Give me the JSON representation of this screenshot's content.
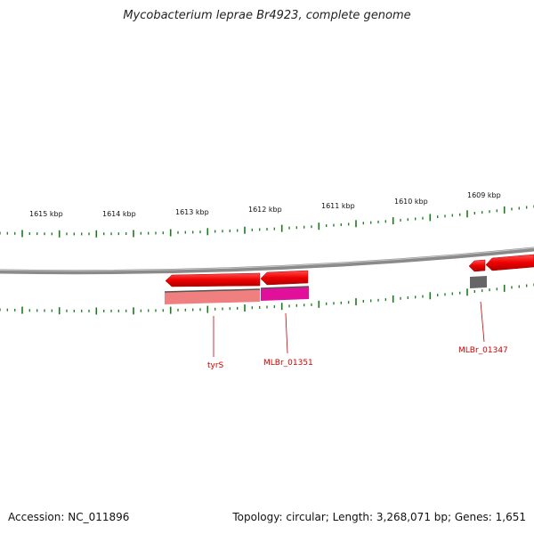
{
  "title": "Mycobacterium leprae Br4923, complete genome",
  "footer": {
    "accession": "Accession: NC_011896",
    "summary": "Topology: circular; Length: 3,268,071 bp; Genes: 1,651"
  },
  "ruler": {
    "labels": [
      "1615 kbp",
      "1614 kbp",
      "1613 kbp",
      "1612 kbp",
      "1611 kbp",
      "1610 kbp",
      "1609 kbp"
    ]
  },
  "genes": [
    {
      "name": "tyrS",
      "labeled": true,
      "color": "#ee0000",
      "strand": "minus"
    },
    {
      "name": "MLBr_01351",
      "labeled": true,
      "color": "#ee0000",
      "strand": "minus"
    },
    {
      "name": "MLBr_01347",
      "labeled": true,
      "color": "#ee0000",
      "strand": "minus"
    }
  ],
  "colors": {
    "backbone": "#8a8a8a",
    "tick": "#1a7a1a",
    "gene_arrow": "#ee0000",
    "feature_pink": "#f08080",
    "feature_magenta": "#e0109a",
    "feature_gray": "#666666",
    "label": "#cc0000"
  }
}
